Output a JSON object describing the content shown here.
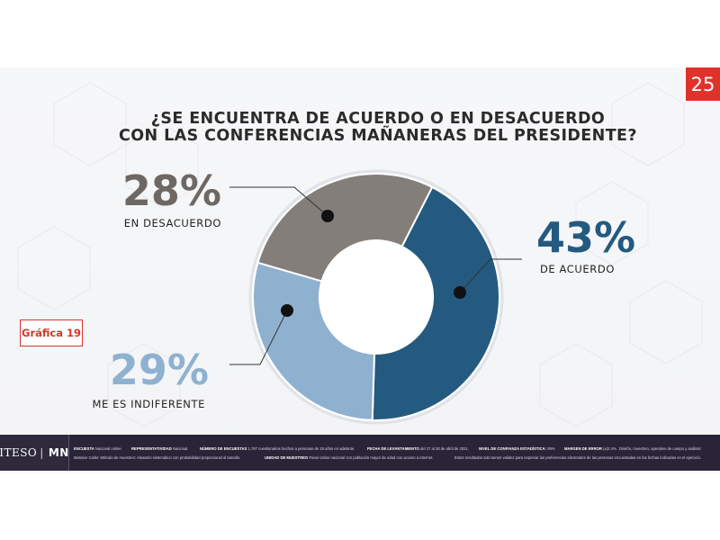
{
  "page_number": "25",
  "title_lines": [
    "¿SE ENCUENTRA DE ACUERDO O EN DESACUERDO",
    "CON LAS CONFERENCIAS MAÑANERAS DEL PRESIDENTE?"
  ],
  "figure_label": "Gráfica 19",
  "chart_data": {
    "type": "pie",
    "donut": true,
    "title": "¿SE ENCUENTRA DE ACUERDO O EN DESACUERDO CON LAS CONFERENCIAS MAÑANERAS DEL PRESIDENTE?",
    "slices": [
      {
        "label": "DE ACUERDO",
        "value": 43,
        "value_label": "43%",
        "color": "#245a80",
        "text_color": "#245a80"
      },
      {
        "label": "ME ES INDIFERENTE",
        "value": 29,
        "value_label": "29%",
        "color": "#8fb1d0",
        "text_color": "#8fb1d0"
      },
      {
        "label": "EN DESACUERDO",
        "value": 28,
        "value_label": "28%",
        "color": "#847e7a",
        "text_color": "#6e6864"
      }
    ],
    "legend": "none"
  },
  "footer": {
    "logo_iteso": "ITESO",
    "logo_mn": "MN",
    "items": [
      {
        "key": "ENCUESTA",
        "value": "Nacional online."
      },
      {
        "key": "REPRESENTATIVIDAD",
        "value": "Nacional."
      },
      {
        "key": "NÚMERO DE ENCUESTAS",
        "value": "1,797 cuestionarios hechos a personas de 18 años en adelante."
      },
      {
        "key": "FECHA DE LEVANTAMIENTO",
        "value": "del 17 al 28 de abril de 2021."
      },
      {
        "key": "NIVEL DE CONFIANZA ESTADÍSTICA:",
        "value": "95%"
      },
      {
        "key": "MARGEN DE ERROR",
        "value": "(±)2.4%."
      },
      {
        "key": "",
        "value": "Diseño, muestreo, operativo de campo y análisis:"
      },
      {
        "key": "",
        "value": "Massive Caller. Método de muestreo: Aleatorio sistemático con probabilidad proporcional al tamaño."
      },
      {
        "key": "UNIDAD DE MUESTREO",
        "value": "Panel online nacional con población mayor de edad con acceso a internet."
      },
      {
        "key": "",
        "value": "Estos resultados solo tienen validez para expresar las preferencias electorales de las personas encuestadas en las fechas indicadas en el ejercicio."
      }
    ]
  }
}
